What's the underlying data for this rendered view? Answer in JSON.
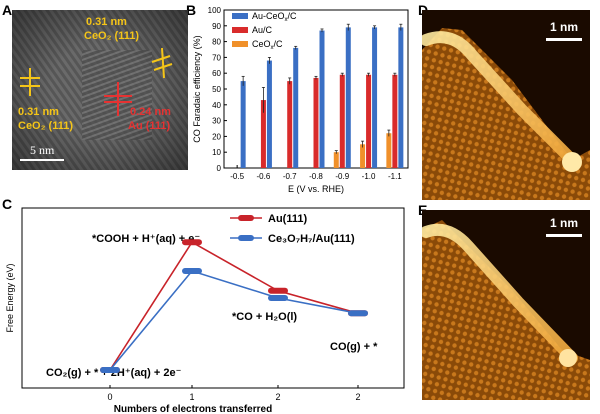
{
  "panels": {
    "a": {
      "letter": "A",
      "labels": {
        "ceo2_top_d": "0.31 nm",
        "ceo2_top_f": "CeO₂ (111)",
        "ceo2_left_d": "0.31 nm",
        "ceo2_left_f": "CeO₂ (111)",
        "au_d": "0.24 nm",
        "au_f": "Au (111)",
        "scale": "5 nm"
      }
    },
    "b": {
      "letter": "B"
    },
    "c": {
      "letter": "C"
    },
    "d": {
      "letter": "D",
      "scale": "1 nm"
    },
    "e": {
      "letter": "E",
      "scale": "1 nm"
    }
  },
  "colors": {
    "au_ceox": "#3a6fc4",
    "au": "#d92b2b",
    "ceox": "#f0902a",
    "red_line": "#c8232a",
    "blue_line": "#3a6fc4"
  },
  "chart_data": [
    {
      "type": "bar",
      "title": "",
      "xlabel": "E (V vs. RHE)",
      "ylabel": "CO Faradaic efficiency (%)",
      "ylim": [
        0,
        100
      ],
      "yticks": [
        "0",
        "10",
        "20",
        "30",
        "40",
        "50",
        "60",
        "70",
        "80",
        "90",
        "100"
      ],
      "categories": [
        "-0.5",
        "-0.6",
        "-0.7",
        "-0.8",
        "-0.9",
        "-1.0",
        "-1.1"
      ],
      "series": [
        {
          "name": "Au-CeOx/C",
          "values": [
            55,
            68,
            76,
            87,
            89,
            89,
            89
          ],
          "errors": [
            3,
            2,
            1,
            1,
            2,
            1,
            2
          ]
        },
        {
          "name": "Au/C",
          "values": [
            null,
            43,
            55,
            57,
            59,
            59,
            59
          ],
          "errors": [
            null,
            8,
            2,
            1,
            1,
            1,
            1
          ]
        },
        {
          "name": "CeOx/C",
          "values": [
            null,
            null,
            null,
            null,
            10,
            15,
            22
          ],
          "errors": [
            null,
            null,
            null,
            null,
            1,
            2,
            2
          ]
        }
      ],
      "legend": {
        "au_ceox": "Au-CeO",
        "au_ceox_sub": "x",
        "au_ceox_suffix": "/C",
        "au": "Au/C",
        "ceox": "CeO",
        "ceox_sub": "x",
        "ceox_suffix": "/C"
      },
      "legend_position": "top-right"
    },
    {
      "type": "line",
      "title": "",
      "xlabel": "Numbers of electrons transferred",
      "ylabel": "Free Energy (eV)",
      "categories": [
        "0",
        "1",
        "2",
        "2"
      ],
      "ylim": [
        -0.2,
        1.8
      ],
      "series": [
        {
          "name": "Au(111)",
          "values": [
            0.0,
            1.42,
            0.88,
            0.63
          ]
        },
        {
          "name": "Ce3O7H7/Au(111)",
          "values": [
            0.0,
            1.1,
            0.8,
            0.63
          ]
        }
      ],
      "annotations": {
        "intermediate1": "*COOH + H⁺(aq) + e⁻",
        "intermediate2": "*CO + H₂O(l)",
        "final": "CO(g) + *",
        "initial": "CO₂(g) + * + 2H⁺(aq) + 2e⁻"
      },
      "legend": {
        "au": "Au(111)",
        "ce": "Ce₃O₇H₇/Au(111)"
      },
      "legend_position": "top-right"
    }
  ]
}
